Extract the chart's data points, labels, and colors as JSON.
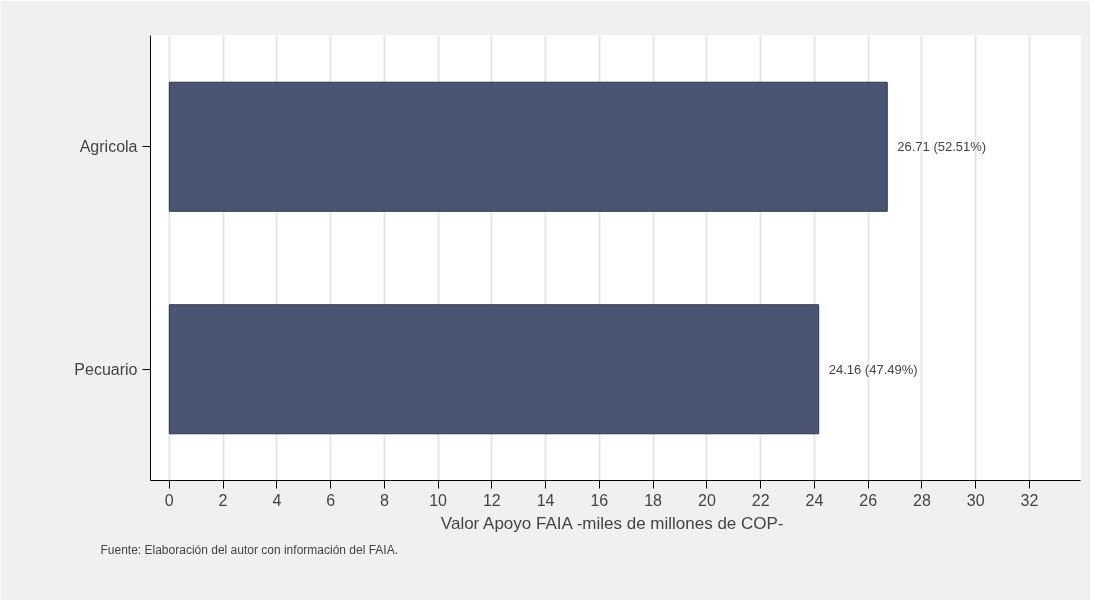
{
  "chart_data": {
    "type": "bar",
    "orientation": "horizontal",
    "categories": [
      "Agricola",
      "Pecuario"
    ],
    "values": [
      26.71,
      24.16
    ],
    "color": "#4a5574",
    "value_labels": [
      "26.71 (52.51%)",
      "24.16 (47.49%)"
    ],
    "xlabel": "Valor Apoyo FAIA  -miles de millones de COP-",
    "xlim": [
      -0.7,
      33.9
    ],
    "xticks": [
      0,
      2,
      4,
      6,
      8,
      10,
      12,
      14,
      16,
      18,
      20,
      22,
      24,
      26,
      28,
      30,
      32
    ],
    "grid": "x",
    "annotations": [
      "Fuente: Elaboración del autor con información del FAIA."
    ]
  }
}
